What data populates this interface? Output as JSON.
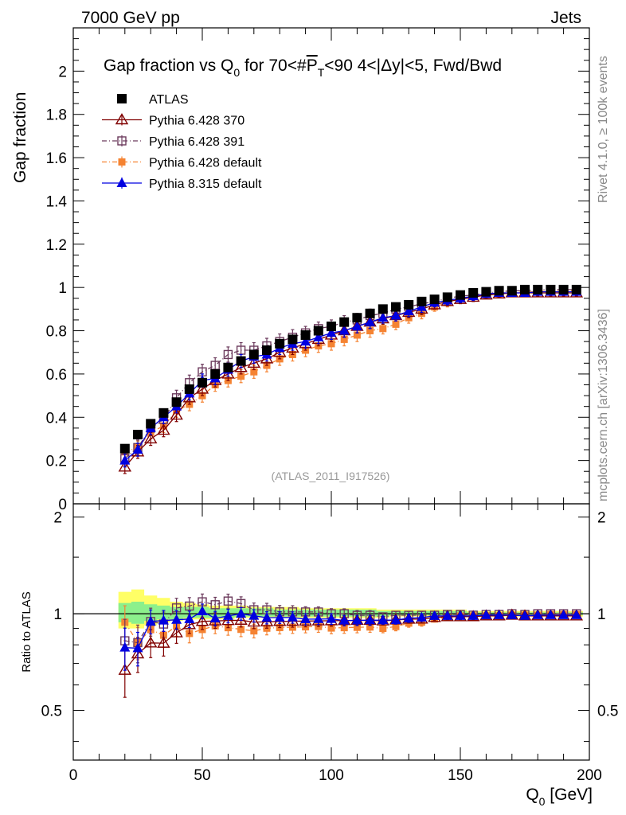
{
  "header": {
    "left": "7000 GeV pp",
    "right": "Jets"
  },
  "side_text": {
    "rivet": "Rivet 4.1.0, ≥ 100k events",
    "mcplots": "mcplots.cern.ch [arXiv:1306.3436]"
  },
  "colors": {
    "atlas": "#000000",
    "p370": "#800000",
    "p391": "#6b3a5c",
    "p6def": "#f58332",
    "p8": "#0000e0",
    "band_yellow": "#ffff66",
    "band_green": "#8cf08c"
  },
  "chart_data": [
    {
      "type": "scatter",
      "id": "main",
      "title_parts": {
        "pre": "Gap fraction vs Q",
        "q_sub": "0",
        "mid": " for 70<#",
        "pbar": "P",
        "t_sub": "T",
        "post": "<90  4<|Δy|<5, Fwd/Bwd"
      },
      "ylabel": "Gap fraction",
      "xlim": [
        0,
        200
      ],
      "ylim": [
        0,
        2.2
      ],
      "yticks": [
        0,
        0.2,
        0.4,
        0.6,
        0.8,
        1,
        1.2,
        1.4,
        1.6,
        1.8,
        2
      ],
      "ytick_labels": [
        "0",
        "0.2",
        "0.4",
        "0.6",
        "0.8",
        "1",
        "1.2",
        "1.4",
        "1.6",
        "1.8",
        "2"
      ],
      "watermark": "(ATLAS_2011_I917526)",
      "x": [
        20,
        25,
        30,
        35,
        40,
        45,
        50,
        55,
        60,
        65,
        70,
        75,
        80,
        85,
        90,
        95,
        100,
        105,
        110,
        115,
        120,
        125,
        130,
        135,
        140,
        145,
        150,
        155,
        160,
        165,
        170,
        175,
        180,
        185,
        190,
        195
      ],
      "series": [
        {
          "key": "atlas",
          "name": "ATLAS",
          "marker": "filled-square",
          "values": [
            0.255,
            0.32,
            0.37,
            0.42,
            0.47,
            0.53,
            0.56,
            0.6,
            0.63,
            0.66,
            0.69,
            0.71,
            0.74,
            0.76,
            0.78,
            0.8,
            0.82,
            0.84,
            0.86,
            0.88,
            0.9,
            0.91,
            0.92,
            0.935,
            0.945,
            0.955,
            0.965,
            0.975,
            0.98,
            0.985,
            0.985,
            0.99,
            0.99,
            0.99,
            0.99,
            0.99
          ],
          "errors": [
            0.005,
            0.005,
            0.005,
            0.005,
            0.005,
            0.005,
            0.005,
            0.005,
            0.005,
            0.005,
            0.005,
            0.005,
            0.005,
            0.005,
            0.005,
            0.005,
            0.005,
            0.005,
            0.005,
            0.005,
            0.005,
            0.005,
            0.005,
            0.005,
            0.005,
            0.005,
            0.005,
            0.005,
            0.005,
            0.005,
            0.005,
            0.005,
            0.005,
            0.005,
            0.005,
            0.005
          ]
        },
        {
          "key": "p370",
          "name": "Pythia 6.428 370",
          "marker": "open-triangle",
          "values": [
            0.17,
            0.24,
            0.3,
            0.34,
            0.41,
            0.49,
            0.53,
            0.57,
            0.6,
            0.63,
            0.65,
            0.67,
            0.7,
            0.72,
            0.74,
            0.76,
            0.78,
            0.8,
            0.82,
            0.84,
            0.855,
            0.87,
            0.885,
            0.9,
            0.92,
            0.935,
            0.945,
            0.955,
            0.965,
            0.97,
            0.975,
            0.975,
            0.975,
            0.975,
            0.975,
            0.975
          ],
          "errors": [
            0.03,
            0.03,
            0.03,
            0.03,
            0.03,
            0.03,
            0.03,
            0.03,
            0.03,
            0.03,
            0.03,
            0.03,
            0.03,
            0.03,
            0.03,
            0.03,
            0.03,
            0.03,
            0.03,
            0.03,
            0.025,
            0.025,
            0.025,
            0.025,
            0.02,
            0.02,
            0.02,
            0.02,
            0.015,
            0.015,
            0.015,
            0.015,
            0.015,
            0.015,
            0.015,
            0.015
          ]
        },
        {
          "key": "p391",
          "name": "Pythia 6.428 391",
          "marker": "open-square",
          "values": [
            0.21,
            0.26,
            0.35,
            0.39,
            0.49,
            0.56,
            0.61,
            0.64,
            0.69,
            0.71,
            0.71,
            0.73,
            0.75,
            0.77,
            0.79,
            0.81,
            0.82,
            0.84,
            0.85,
            0.87,
            0.88,
            0.9,
            0.91,
            0.925,
            0.935,
            0.95,
            0.96,
            0.965,
            0.975,
            0.98,
            0.985,
            0.985,
            0.99,
            0.99,
            0.99,
            0.99
          ],
          "errors": [
            0.035,
            0.035,
            0.035,
            0.035,
            0.035,
            0.035,
            0.035,
            0.035,
            0.035,
            0.035,
            0.035,
            0.035,
            0.035,
            0.035,
            0.03,
            0.03,
            0.03,
            0.03,
            0.03,
            0.03,
            0.025,
            0.025,
            0.025,
            0.025,
            0.02,
            0.02,
            0.02,
            0.02,
            0.015,
            0.015,
            0.015,
            0.015,
            0.015,
            0.015,
            0.015,
            0.015
          ]
        },
        {
          "key": "p6def",
          "name": "Pythia 6.428 default",
          "marker": "filled-square-small",
          "values": [
            0.24,
            0.26,
            0.33,
            0.36,
            0.43,
            0.46,
            0.5,
            0.55,
            0.57,
            0.59,
            0.61,
            0.64,
            0.67,
            0.69,
            0.71,
            0.73,
            0.74,
            0.76,
            0.78,
            0.8,
            0.81,
            0.83,
            0.86,
            0.88,
            0.91,
            0.93,
            0.95,
            0.96,
            0.965,
            0.97,
            0.975,
            0.98,
            0.98,
            0.985,
            0.985,
            0.985
          ],
          "errors": [
            0.03,
            0.03,
            0.03,
            0.03,
            0.03,
            0.03,
            0.03,
            0.03,
            0.03,
            0.03,
            0.03,
            0.03,
            0.03,
            0.03,
            0.03,
            0.03,
            0.03,
            0.03,
            0.03,
            0.03,
            0.025,
            0.025,
            0.025,
            0.025,
            0.02,
            0.02,
            0.02,
            0.02,
            0.015,
            0.015,
            0.015,
            0.015,
            0.015,
            0.015,
            0.015,
            0.015
          ]
        },
        {
          "key": "p8",
          "name": "Pythia 8.315 default",
          "marker": "filled-triangle",
          "values": [
            0.2,
            0.25,
            0.35,
            0.4,
            0.45,
            0.51,
            0.57,
            0.58,
            0.62,
            0.66,
            0.68,
            0.69,
            0.72,
            0.74,
            0.75,
            0.77,
            0.79,
            0.8,
            0.82,
            0.84,
            0.86,
            0.87,
            0.89,
            0.91,
            0.93,
            0.94,
            0.95,
            0.96,
            0.97,
            0.975,
            0.975,
            0.975,
            0.98,
            0.98,
            0.98,
            0.98
          ],
          "errors": [
            0.03,
            0.03,
            0.03,
            0.03,
            0.03,
            0.03,
            0.03,
            0.03,
            0.03,
            0.03,
            0.03,
            0.03,
            0.03,
            0.03,
            0.03,
            0.03,
            0.03,
            0.03,
            0.03,
            0.03,
            0.025,
            0.025,
            0.025,
            0.025,
            0.02,
            0.02,
            0.02,
            0.02,
            0.015,
            0.015,
            0.015,
            0.015,
            0.015,
            0.015,
            0.015,
            0.015
          ]
        }
      ]
    },
    {
      "type": "scatter",
      "id": "ratio",
      "ylabel": "Ratio to ATLAS",
      "xlabel_pre": "Q",
      "xlabel_sub": "0",
      "xlabel_post": " [GeV]",
      "xlim": [
        0,
        200
      ],
      "ylim": [
        0.35,
        2.2
      ],
      "yscale": "log",
      "xticks": [
        0,
        50,
        100,
        150,
        200
      ],
      "xtick_labels": [
        "0",
        "50",
        "100",
        "150",
        "200"
      ],
      "yticks": [
        0.5,
        1,
        2
      ],
      "ytick_labels": [
        "0.5",
        "1",
        "2"
      ],
      "reference": 1,
      "band_yellow": {
        "x": [
          20,
          25,
          30,
          35,
          40,
          45,
          50,
          55,
          60,
          65,
          70,
          75,
          80,
          85,
          90,
          95,
          100,
          105,
          110,
          115,
          120,
          125,
          130,
          135,
          140,
          145,
          150,
          155,
          160,
          165,
          170,
          175,
          180,
          185,
          190,
          195
        ],
        "lo": [
          0.9,
          0.9,
          0.92,
          0.94,
          0.95,
          0.96,
          0.96,
          0.96,
          0.96,
          0.97,
          0.97,
          0.97,
          0.97,
          0.97,
          0.97,
          0.97,
          0.97,
          0.97,
          0.97,
          0.97,
          0.97,
          0.98,
          0.98,
          0.98,
          0.98,
          0.98,
          0.98,
          0.98,
          0.98,
          0.98,
          0.98,
          0.98,
          0.98,
          0.98,
          0.98,
          0.98
        ],
        "hi": [
          1.17,
          1.19,
          1.14,
          1.12,
          1.09,
          1.08,
          1.07,
          1.06,
          1.06,
          1.06,
          1.05,
          1.05,
          1.05,
          1.05,
          1.04,
          1.04,
          1.04,
          1.04,
          1.04,
          1.04,
          1.03,
          1.03,
          1.03,
          1.03,
          1.03,
          1.03,
          1.03,
          1.02,
          1.02,
          1.02,
          1.02,
          1.02,
          1.02,
          1.02,
          1.02,
          1.02
        ]
      },
      "band_green": {
        "x": [
          20,
          25,
          30,
          35,
          40,
          45,
          50,
          55,
          60,
          65,
          70,
          75,
          80,
          85,
          90,
          95,
          100,
          105,
          110,
          115,
          120,
          125,
          130,
          135,
          140,
          145,
          150,
          155,
          160,
          165,
          170,
          175,
          180,
          185,
          190,
          195
        ],
        "lo": [
          0.94,
          0.93,
          0.95,
          0.96,
          0.96,
          0.97,
          0.97,
          0.97,
          0.97,
          0.98,
          0.98,
          0.98,
          0.98,
          0.98,
          0.98,
          0.98,
          0.98,
          0.98,
          0.98,
          0.98,
          0.98,
          0.99,
          0.99,
          0.99,
          0.99,
          0.99,
          0.99,
          0.99,
          0.99,
          0.99,
          0.99,
          0.99,
          0.99,
          0.99,
          0.99,
          0.99
        ],
        "hi": [
          1.08,
          1.09,
          1.07,
          1.06,
          1.05,
          1.05,
          1.05,
          1.04,
          1.04,
          1.04,
          1.04,
          1.04,
          1.03,
          1.03,
          1.03,
          1.03,
          1.03,
          1.03,
          1.03,
          1.03,
          1.02,
          1.02,
          1.02,
          1.02,
          1.02,
          1.02,
          1.02,
          1.01,
          1.01,
          1.01,
          1.01,
          1.01,
          1.01,
          1.01,
          1.01,
          1.01
        ]
      }
    }
  ]
}
